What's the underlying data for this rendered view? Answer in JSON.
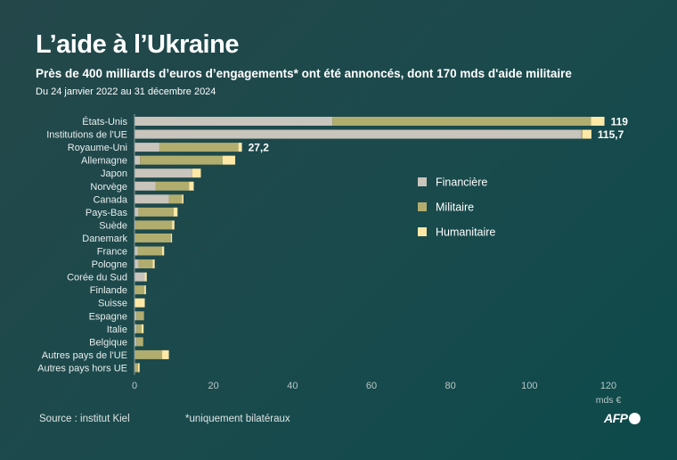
{
  "title": "L’aide à l’Ukraine",
  "subtitle": "Près de 400 milliards d’euros d’engagements* ont été annoncés, dont 170 mds d'aide militaire",
  "period": "Du 24 janvier 2022 au 31 décembre 2024",
  "source": "Source : institut Kiel",
  "note": "*uniquement bilatéraux",
  "logo": "AFP",
  "chart_data": {
    "type": "bar",
    "orientation": "horizontal",
    "stacked": true,
    "categories": [
      "États-Unis",
      "Institutions de l'UE",
      "Royaume-Uni",
      "Allemagne",
      "Japon",
      "Norvège",
      "Canada",
      "Pays-Bas",
      "Suède",
      "Danemark",
      "France",
      "Pologne",
      "Corée du Sud",
      "Finlande",
      "Suisse",
      "Espagne",
      "Italie",
      "Belgique",
      "Autres pays de l'UE",
      "Autres pays hors UE"
    ],
    "series": [
      {
        "name": "Financière",
        "color": "#c9c4bc",
        "values": [
          50.1,
          113.2,
          6.3,
          1.4,
          14.6,
          5.3,
          8.7,
          1.0,
          0.3,
          0.2,
          0.8,
          1.0,
          2.6,
          0.1,
          0.1,
          0.5,
          0.5,
          0.5,
          0.2,
          0.1
        ]
      },
      {
        "name": "Militaire",
        "color": "#b1ad6f",
        "values": [
          65.5,
          0.2,
          20.0,
          20.9,
          0,
          8.5,
          3.3,
          8.9,
          9.2,
          9.0,
          6.2,
          3.6,
          0,
          2.4,
          0,
          1.9,
          1.3,
          1.7,
          6.8,
          0.8
        ]
      },
      {
        "name": "Humanitaire",
        "color": "#fde8a6",
        "values": [
          3.4,
          2.3,
          0.9,
          3.2,
          2.2,
          1.2,
          0.4,
          1.0,
          0.6,
          0.3,
          0.5,
          0.5,
          0.5,
          0.4,
          2.5,
          0,
          0.5,
          0,
          1.7,
          0.4
        ]
      }
    ],
    "data_labels": {
      "États-Unis": "119",
      "Institutions de l'UE": "115,7",
      "Royaume-Uni": "27,2"
    },
    "xlim": [
      0,
      125
    ],
    "xticks": [
      "0",
      "20",
      "40",
      "60",
      "80",
      "100",
      "120"
    ],
    "xunit": "mds €",
    "grid": false,
    "legend": "right"
  }
}
